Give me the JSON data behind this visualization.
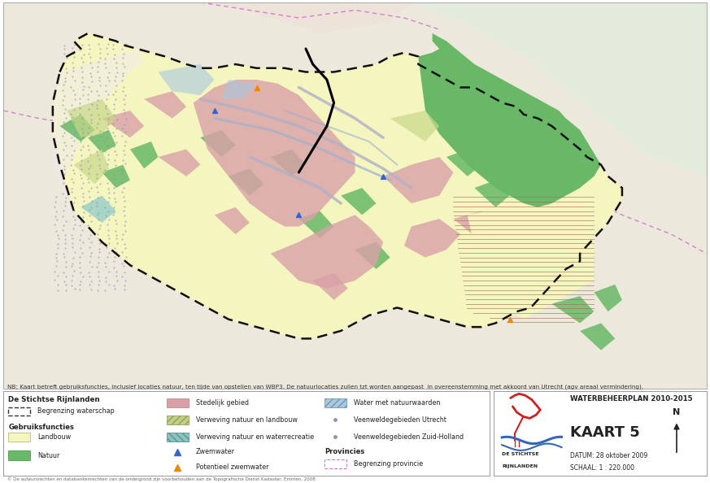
{
  "title_top_right": "GEBRUIKSFUNCTIES",
  "note_text": "NB: Kaart betreft gebruiksfuncties, inclusief locaties natuur, ten tijde van opstellen van WBP3. De natuurlocaties zullen tzt worden aangepast  in overeenstemming met akkoord van Utrecht (agv areaal vermindering).",
  "copyright_text": "© De auteursrechten en databankenrechten van de ondergrond zijn voorbehouden aan de Topografische Dienst Kadaster, Emmen, 2008",
  "map_outer_bg": "#f0ece0",
  "map_inner_bg": "#f8f5e8",
  "border_color": "#aaaaaa",
  "info_box": {
    "title": "WATERBEHEERPLAN 2010-2015",
    "map_number": "KAART 5",
    "date": "DATUM: 28 oktober 2009",
    "scale": "SCHAAL: 1 : 220.000",
    "organization_line1": "DE STICHTSE",
    "organization_line2": "RIJNLANDEN"
  },
  "colors": {
    "landbouw": "#f5f5c0",
    "natuur": "#68b868",
    "stedelijk": "#d9a0a8",
    "verweving_landbouw": "#b8cc80",
    "verweving_water": "#80c8c0",
    "water_natuur": "#a8c8e0",
    "veenwelde": "#c8c8e8",
    "boundary_black": "#111111",
    "boundary_purple": "#cc66cc",
    "road_grey": "#c0bcd0",
    "road_blue": "#90a8d0",
    "hatch_brown": "#a07050"
  },
  "figsize": [
    8.73,
    5.94
  ],
  "dpi": 100
}
